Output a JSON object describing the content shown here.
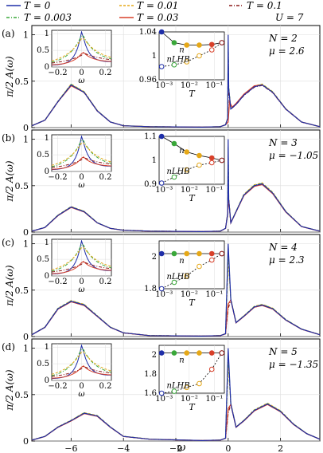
{
  "legend": {
    "entries": [
      {
        "label": "T = 0",
        "color": "#1f2ea8",
        "dash": "solid"
      },
      {
        "label": "T = 0.01",
        "color": "#e6a817",
        "dash": "dashed"
      },
      {
        "label": "T = 0.1",
        "color": "#8b1a1a",
        "dash": "dashdot"
      },
      {
        "label": "T = 0.003",
        "color": "#3aa83a",
        "dash": "dashdot"
      },
      {
        "label": "T = 0.03",
        "color": "#d8402a",
        "dash": "solid"
      }
    ],
    "note": "U = 7"
  },
  "axis": {
    "xlabel": "ω",
    "ylabel": "π/2 A(ω)",
    "xticks": [
      "−6",
      "−4",
      "−2",
      "0",
      "2"
    ],
    "yticks": [
      "0",
      "0.5",
      "1"
    ]
  },
  "inset": {
    "left_xticks": [
      "−0.2",
      "0",
      "0.2"
    ],
    "left_xlabel": "ω",
    "left_yticks": [
      "0",
      "0.5",
      "1"
    ],
    "right_xticks": [
      "10⁻³",
      "10⁻²",
      "10⁻¹"
    ],
    "right_xlabel": "T",
    "n_label": "n",
    "nlhb_label": "nLHB"
  },
  "chart_data": [
    {
      "type": "line",
      "panel": "(a)",
      "N": "N = 2",
      "mu": "μ = 2.6",
      "xlim": [
        -7.5,
        3.5
      ],
      "ylim": [
        0,
        1.1
      ],
      "series": [
        {
          "name": "T = 0",
          "hub": [
            [
              -7.5,
              0.02
            ],
            [
              -7,
              0.08
            ],
            [
              -6.5,
              0.28
            ],
            [
              -6,
              0.46
            ],
            [
              -5.5,
              0.38
            ],
            [
              -5,
              0.18
            ],
            [
              -4.5,
              0.06
            ],
            [
              -4,
              0.02
            ],
            [
              -3,
              0.01
            ],
            [
              -1,
              0.005
            ],
            [
              -0.3,
              0.01
            ],
            [
              -0.1,
              0.03
            ],
            [
              -0.02,
              0.1
            ],
            [
              0,
              1.0
            ],
            [
              0.02,
              0.42
            ],
            [
              0.1,
              0.2
            ],
            [
              0.3,
              0.25
            ],
            [
              0.6,
              0.35
            ],
            [
              1,
              0.44
            ],
            [
              1.3,
              0.46
            ],
            [
              1.7,
              0.38
            ],
            [
              2.2,
              0.2
            ],
            [
              2.8,
              0.06
            ],
            [
              3.5,
              0.01
            ]
          ]
        },
        {
          "name": "T = 0.03",
          "hub": [
            [
              -7.5,
              0.02
            ],
            [
              -7,
              0.08
            ],
            [
              -6.5,
              0.28
            ],
            [
              -6,
              0.45
            ],
            [
              -5.5,
              0.38
            ],
            [
              -5,
              0.18
            ],
            [
              -4.5,
              0.06
            ],
            [
              -4,
              0.02
            ],
            [
              -3,
              0.01
            ],
            [
              -1,
              0.005
            ],
            [
              -0.3,
              0.01
            ],
            [
              -0.1,
              0.03
            ],
            [
              0,
              0.06
            ],
            [
              0.05,
              0.28
            ],
            [
              0.15,
              0.22
            ],
            [
              0.3,
              0.26
            ],
            [
              0.6,
              0.36
            ],
            [
              1,
              0.45
            ],
            [
              1.3,
              0.46
            ],
            [
              1.7,
              0.38
            ],
            [
              2.2,
              0.2
            ],
            [
              2.8,
              0.06
            ],
            [
              3.5,
              0.01
            ]
          ]
        }
      ],
      "inset_n": {
        "ylim": [
          0.96,
          1.04
        ],
        "yticks": [
          "0.96",
          "1",
          "1.04"
        ],
        "n": [
          1.04,
          1.022,
          1.018,
          1.018,
          1.019,
          1.022
        ],
        "nlhb": [
          0.982,
          0.985,
          0.99,
          1.0,
          1.01,
          1.022
        ]
      }
    },
    {
      "type": "line",
      "panel": "(b)",
      "N": "N = 3",
      "mu": "μ = −1.05",
      "xlim": [
        -7.5,
        3.5
      ],
      "ylim": [
        0,
        1.1
      ],
      "series": [
        {
          "name": "T = 0",
          "hub": [
            [
              -7.5,
              0.01
            ],
            [
              -7,
              0.05
            ],
            [
              -6.5,
              0.18
            ],
            [
              -6,
              0.27
            ],
            [
              -5.5,
              0.22
            ],
            [
              -5,
              0.1
            ],
            [
              -4.5,
              0.04
            ],
            [
              -4,
              0.02
            ],
            [
              -3,
              0.01
            ],
            [
              -1,
              0.005
            ],
            [
              -0.3,
              0.01
            ],
            [
              -0.1,
              0.04
            ],
            [
              -0.02,
              0.2
            ],
            [
              0,
              1.0
            ],
            [
              0.02,
              0.35
            ],
            [
              0.1,
              0.1
            ],
            [
              0.3,
              0.22
            ],
            [
              0.6,
              0.4
            ],
            [
              1,
              0.5
            ],
            [
              1.3,
              0.52
            ],
            [
              1.7,
              0.42
            ],
            [
              2.2,
              0.22
            ],
            [
              2.8,
              0.06
            ],
            [
              3.5,
              0.01
            ]
          ]
        }
      ],
      "inset_n": {
        "ylim": [
          0.9,
          1.1
        ],
        "yticks": [
          "0.9",
          "1",
          "1.1"
        ],
        "n": [
          1.1,
          1.07,
          1.035,
          1.02,
          1.01,
          1.0
        ],
        "nlhb": [
          0.905,
          0.93,
          0.96,
          0.98,
          0.99,
          1.0
        ]
      }
    },
    {
      "type": "line",
      "panel": "(c)",
      "N": "N = 4",
      "mu": "μ = 2.3",
      "xlim": [
        -7.5,
        3.5
      ],
      "ylim": [
        0,
        1.1
      ],
      "series": [
        {
          "name": "T = 0",
          "hub": [
            [
              -7.5,
              0.02
            ],
            [
              -7,
              0.1
            ],
            [
              -6.5,
              0.3
            ],
            [
              -6,
              0.38
            ],
            [
              -5.5,
              0.34
            ],
            [
              -5,
              0.22
            ],
            [
              -4.5,
              0.1
            ],
            [
              -4,
              0.04
            ],
            [
              -3,
              0.01
            ],
            [
              -1,
              0.005
            ],
            [
              -0.3,
              0.01
            ],
            [
              -0.1,
              0.03
            ],
            [
              0,
              1.0
            ],
            [
              0.1,
              0.4
            ],
            [
              0.3,
              0.15
            ],
            [
              0.6,
              0.22
            ],
            [
              1,
              0.32
            ],
            [
              1.3,
              0.34
            ],
            [
              1.7,
              0.3
            ],
            [
              2.2,
              0.18
            ],
            [
              2.8,
              0.08
            ],
            [
              3.5,
              0.02
            ]
          ]
        }
      ],
      "inset_n": {
        "ylim": [
          1.8,
          2.1
        ],
        "yticks": [
          "1.8",
          "2"
        ],
        "n": [
          2.02,
          2.02,
          2.02,
          2.02,
          2.02,
          2.02
        ],
        "nlhb": [
          1.8,
          1.84,
          1.88,
          1.94,
          1.98,
          2.02
        ]
      }
    },
    {
      "type": "line",
      "panel": "(d)",
      "N": "N = 5",
      "mu": "μ = −1.35",
      "xlim": [
        -7.5,
        3.5
      ],
      "ylim": [
        0,
        1.1
      ],
      "series": [
        {
          "name": "T = 0",
          "hub": [
            [
              -7.5,
              0.01
            ],
            [
              -7,
              0.05
            ],
            [
              -6.5,
              0.15
            ],
            [
              -6,
              0.22
            ],
            [
              -5.5,
              0.3
            ],
            [
              -5,
              0.27
            ],
            [
              -4.5,
              0.15
            ],
            [
              -4,
              0.05
            ],
            [
              -3,
              0.02
            ],
            [
              -1,
              0.005
            ],
            [
              -0.3,
              0.01
            ],
            [
              -0.1,
              0.03
            ],
            [
              0,
              1.0
            ],
            [
              0.1,
              0.4
            ],
            [
              0.3,
              0.15
            ],
            [
              0.6,
              0.22
            ],
            [
              1,
              0.33
            ],
            [
              1.5,
              0.4
            ],
            [
              2,
              0.32
            ],
            [
              2.5,
              0.18
            ],
            [
              3,
              0.08
            ],
            [
              3.5,
              0.02
            ]
          ]
        }
      ],
      "inset_n": {
        "ylim": [
          1.6,
          2.1
        ],
        "yticks": [
          "1.6",
          "1.8",
          "2"
        ],
        "n": [
          2.02,
          2.02,
          2.02,
          2.02,
          2.02,
          2.02
        ],
        "nlhb": [
          1.6,
          1.62,
          1.66,
          1.7,
          1.85,
          2.02
        ]
      }
    }
  ]
}
